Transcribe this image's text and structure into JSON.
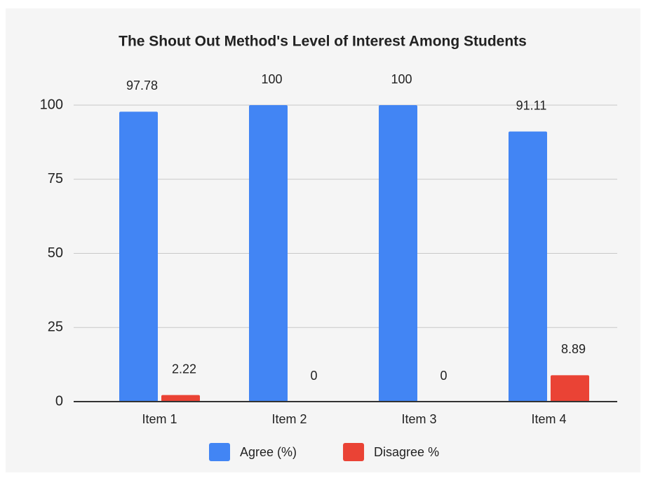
{
  "chart_data": {
    "type": "bar",
    "title": "The Shout Out Method's Level of Interest Among Students",
    "categories": [
      "Item 1",
      "Item 2",
      "Item 3",
      "Item 4"
    ],
    "series": [
      {
        "name": "Agree (%)",
        "color": "#4285f4",
        "values": [
          97.78,
          100,
          100,
          91.11
        ]
      },
      {
        "name": "Disagree %",
        "color": "#ea4335",
        "values": [
          2.22,
          0,
          0,
          8.89
        ]
      }
    ],
    "ylim": [
      0,
      100
    ],
    "yticks": [
      0,
      25,
      50,
      75,
      100
    ],
    "grid": true,
    "legend": "bottom"
  }
}
